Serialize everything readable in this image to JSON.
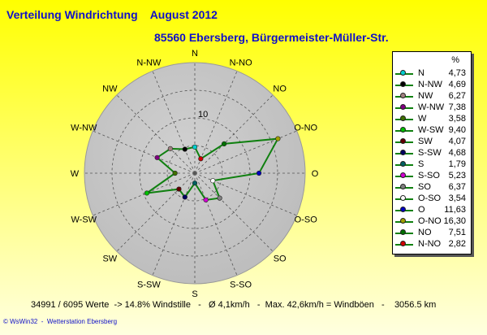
{
  "header": {
    "title": "Verteilung Windrichtung    August 2012",
    "subtitle": "85560 Ebersberg, Bürgermeister-Müller-Str."
  },
  "footer": {
    "stats": "34991 / 6095 Werte  -> 14.8% Windstille   -   Ø 4,1km/h   -  Max. 42,6km/h = Windböen   -    3056.5 km",
    "credit": "© WsWin32  -  Wetterstation Ebersberg"
  },
  "chart_data": {
    "type": "radar",
    "title": "Verteilung Windrichtung    August 2012",
    "subtitle": "85560 Ebersberg, Bürgermeister-Müller-Str.",
    "rmax": 20,
    "ring_label": "10",
    "grid": true,
    "legend_position": "right",
    "legend_header": "%",
    "directions": [
      "N",
      "NNO",
      "NO",
      "ONO",
      "O",
      "OSO",
      "SO",
      "SSO",
      "S",
      "SSW",
      "SW",
      "WSW",
      "W",
      "WNW",
      "NW",
      "NNW"
    ],
    "direction_labels": [
      "N",
      "N-NO",
      "NO",
      "O-NO",
      "O",
      "O-SO",
      "SO",
      "S-SO",
      "S",
      "S-SW",
      "SW",
      "W-SW",
      "W",
      "W-NW",
      "NW",
      "N-NW"
    ],
    "values": [
      4.73,
      2.82,
      7.51,
      16.3,
      11.63,
      3.54,
      6.37,
      5.23,
      1.79,
      4.68,
      4.07,
      9.4,
      3.58,
      7.38,
      6.27,
      4.69
    ],
    "colors": [
      "#00d0d0",
      "#d00000",
      "#007000",
      "#a0a000",
      "#0000c0",
      "#ffffff",
      "#808080",
      "#d000d0",
      "#006060",
      "#000060",
      "#600000",
      "#00c000",
      "#407000",
      "#800080",
      "#a08080",
      "#000000"
    ],
    "line_color": "#108010",
    "legend": [
      {
        "name": "N",
        "value": "4,73",
        "color": "#00d0d0"
      },
      {
        "name": "N-NW",
        "value": "4,69",
        "color": "#000000"
      },
      {
        "name": "NW",
        "value": "6,27",
        "color": "#a08080"
      },
      {
        "name": "W-NW",
        "value": "7,38",
        "color": "#800080"
      },
      {
        "name": "W",
        "value": "3,58",
        "color": "#407000"
      },
      {
        "name": "W-SW",
        "value": "9,40",
        "color": "#00c000"
      },
      {
        "name": "SW",
        "value": "4,07",
        "color": "#600000"
      },
      {
        "name": "S-SW",
        "value": "4,68",
        "color": "#000060"
      },
      {
        "name": "S",
        "value": "1,79",
        "color": "#006060"
      },
      {
        "name": "S-SO",
        "value": "5,23",
        "color": "#d000d0"
      },
      {
        "name": "SO",
        "value": "6,37",
        "color": "#808080"
      },
      {
        "name": "O-SO",
        "value": "3,54",
        "color": "#ffffff"
      },
      {
        "name": "O",
        "value": "11,63",
        "color": "#0000c0"
      },
      {
        "name": "O-NO",
        "value": "16,30",
        "color": "#a0a000"
      },
      {
        "name": "NO",
        "value": "7,51",
        "color": "#007000"
      },
      {
        "name": "N-NO",
        "value": "2,82",
        "color": "#d00000"
      }
    ]
  }
}
